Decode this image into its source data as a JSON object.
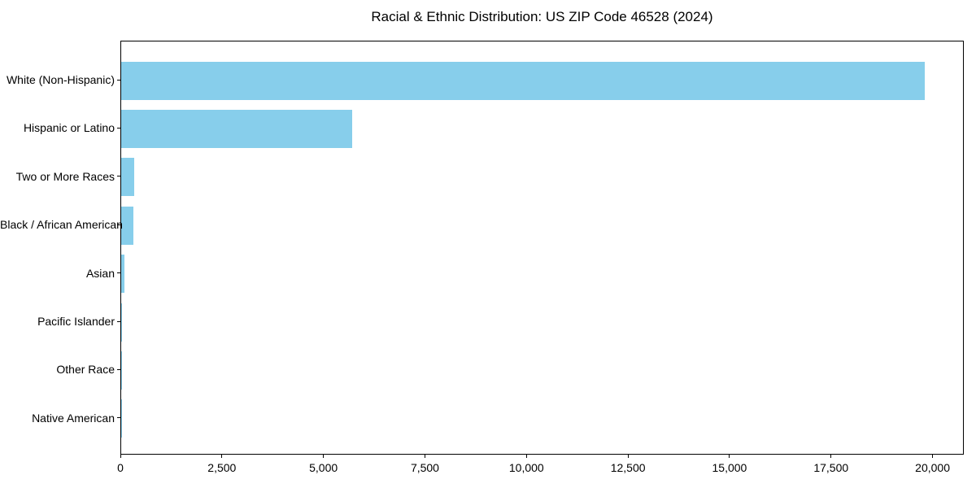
{
  "chart_data": {
    "type": "bar",
    "orientation": "horizontal",
    "title": "Racial & Ethnic Distribution: US ZIP Code 46528 (2024)",
    "categories": [
      "White (Non-Hispanic)",
      "Hispanic or Latino",
      "Two or More Races",
      "Black / African American",
      "Asian",
      "Pacific Islander",
      "Other Race",
      "Native American"
    ],
    "values": [
      19780,
      5690,
      330,
      300,
      90,
      20,
      10,
      5
    ],
    "xlabel": "",
    "ylabel": "",
    "xlim": [
      0,
      20769
    ],
    "x_ticks": [
      0,
      2500,
      5000,
      7500,
      10000,
      12500,
      15000,
      17500,
      20000
    ],
    "x_tick_labels": [
      "0",
      "2,500",
      "5,000",
      "7,500",
      "10,000",
      "12,500",
      "15,000",
      "17,500",
      "20,000"
    ],
    "bar_color": "#87CEEB",
    "frame_color": "#000000",
    "background_color": "#ffffff",
    "grid": false,
    "legend": null
  }
}
